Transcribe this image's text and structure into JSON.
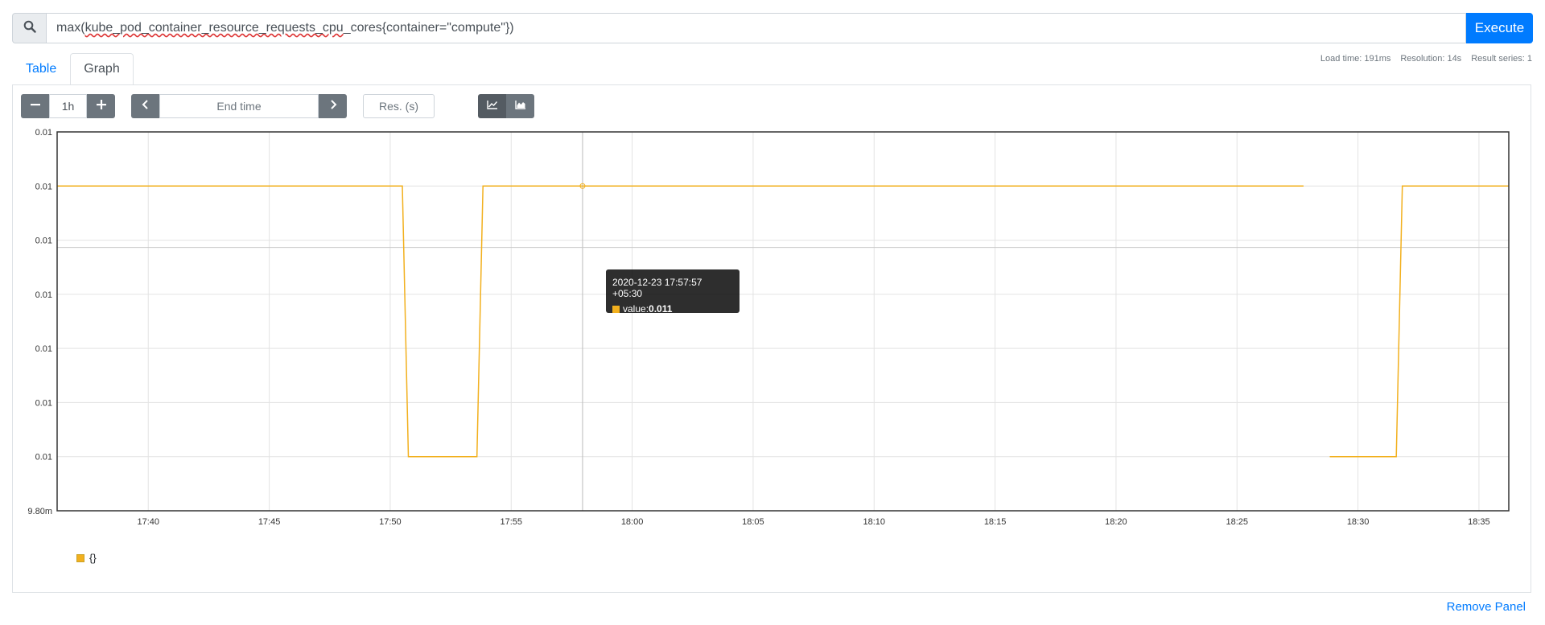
{
  "query": {
    "text_prefix": "max(",
    "text_misspelled": "kube_pod_container_resource_requests_cpu",
    "text_suffix": "_cores{container=\"compute\"})",
    "execute_label": "Execute",
    "search_icon": "search-icon"
  },
  "tabs": [
    {
      "label": "Table",
      "active": false
    },
    {
      "label": "Graph",
      "active": true
    }
  ],
  "stats": {
    "load_time": "Load time: 191ms",
    "resolution": "Resolution: 14s",
    "result_series": "Result series: 1"
  },
  "controls": {
    "range": "1h",
    "end_time_placeholder": "End time",
    "res_placeholder": "Res. (s)",
    "icons": [
      "minus-icon",
      "plus-icon",
      "chevron-left-icon",
      "chevron-right-icon",
      "line-chart-icon",
      "area-chart-icon"
    ]
  },
  "colors": {
    "accent": "#007bff",
    "series": "#f2b01e"
  },
  "chart_data": {
    "type": "line",
    "y_tick_labels": [
      "0.01",
      "0.01",
      "0.01",
      "0.01",
      "0.01",
      "0.01",
      "0.01",
      "9.80m"
    ],
    "x_tick_labels": [
      "17:40",
      "17:45",
      "17:50",
      "17:55",
      "18:00",
      "18:05",
      "18:10",
      "18:15",
      "18:20",
      "18:25",
      "18:30",
      "18:35"
    ],
    "x_range": [
      "17:36:14",
      "18:36:14"
    ],
    "y_range": [
      0.0098,
      0.0112
    ],
    "grid": true,
    "series": [
      {
        "name": "{}",
        "segments": [
          [
            [
              "17:36:14",
              0.011
            ],
            [
              "17:50:30",
              0.011
            ],
            [
              "17:50:45",
              0.01
            ],
            [
              "17:53:35",
              0.01
            ],
            [
              "17:53:50",
              0.011
            ],
            [
              "18:27:45",
              0.011
            ]
          ],
          [
            [
              "18:28:50",
              0.01
            ],
            [
              "18:31:35",
              0.01
            ],
            [
              "18:31:50",
              0.011
            ],
            [
              "18:36:14",
              0.011
            ]
          ]
        ]
      }
    ],
    "hover": {
      "time": "17:57:57",
      "value": 0.011
    },
    "legend_position": "bottom-left"
  },
  "tooltip": {
    "timestamp": "2020-12-23 17:57:57 +05:30",
    "value_label": "value: ",
    "value": "0.011"
  },
  "legend": {
    "label": "{}"
  },
  "remove_panel_label": "Remove Panel"
}
